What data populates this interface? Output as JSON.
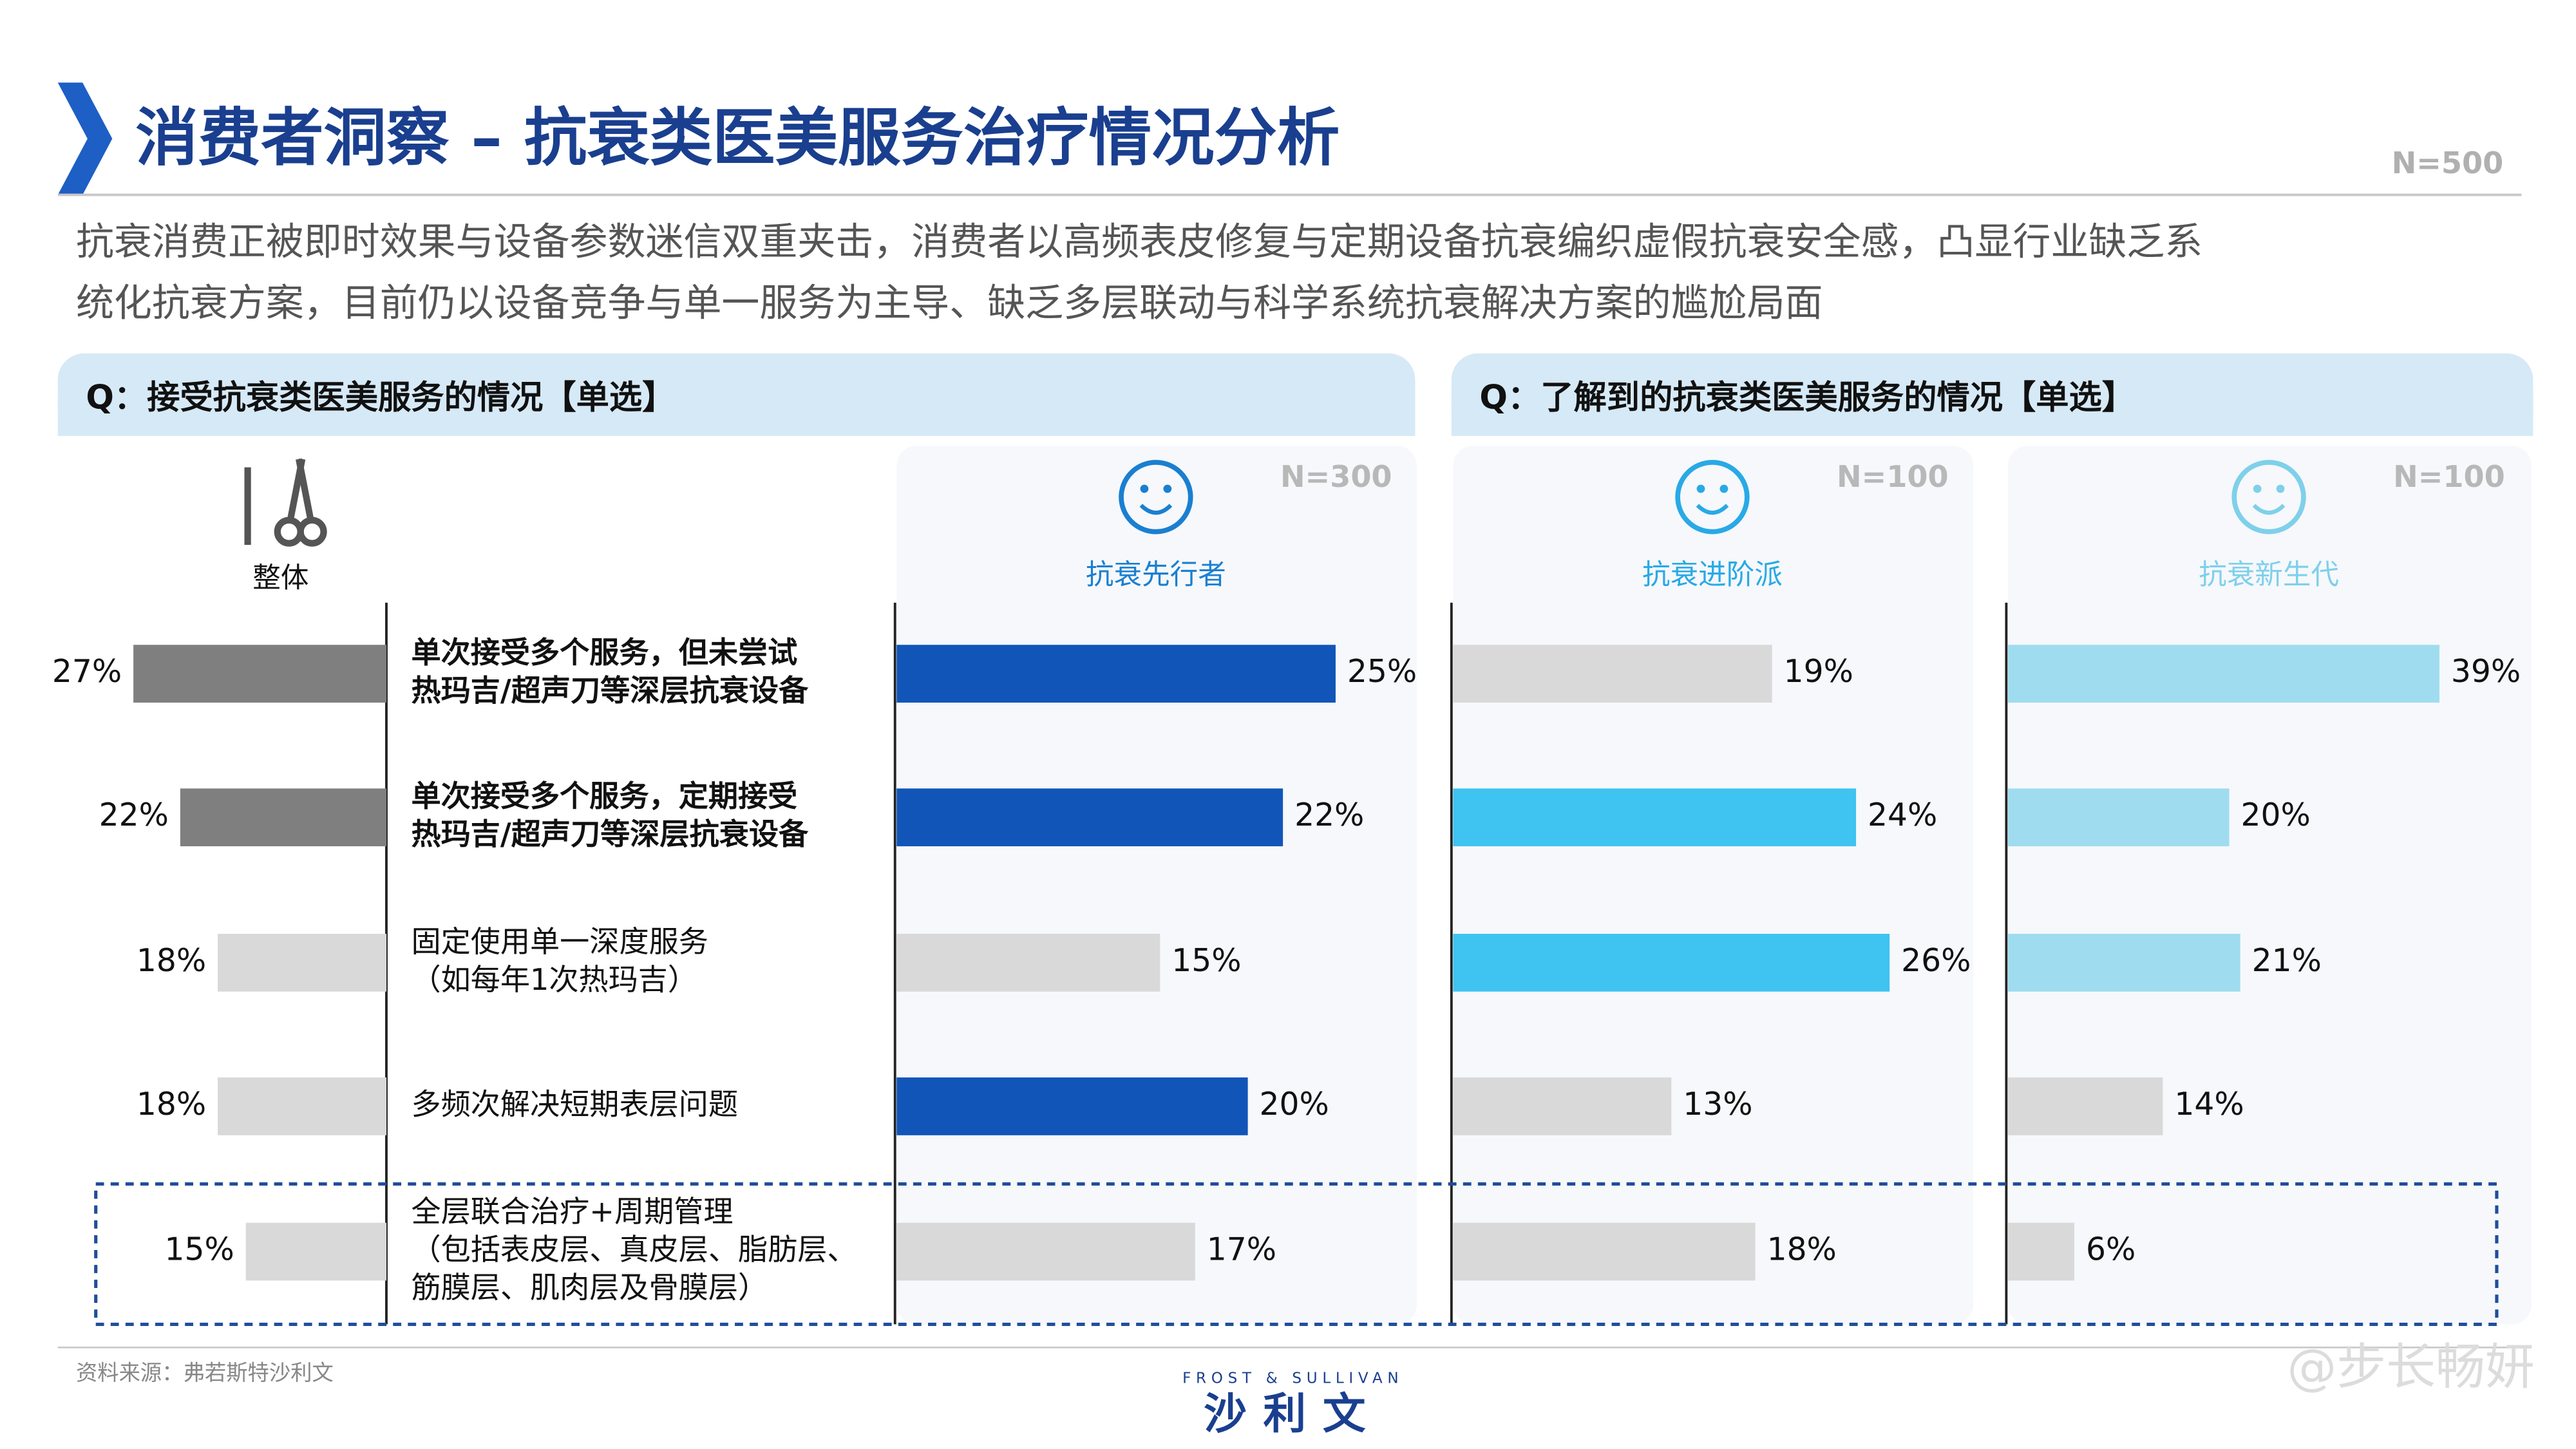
{
  "header": {
    "title": "消费者洞察 – 抗衰类医美服务治疗情况分析",
    "sample": "N=500"
  },
  "summary": [
    "抗衰消费正被即时效果与设备参数迷信双重夹击，消费者以高频表皮修复与定期设备抗衰编织虚假抗衰安全感，凸显行业缺乏系",
    "统化抗衰方案，目前仍以设备竞争与单一服务为主导、缺乏多层联动与科学系统抗衰解决方案的尴尬局面"
  ],
  "questions": [
    "Q：接受抗衰类医美服务的情况【单选】",
    "Q：了解到的抗衰类医美服务的情况【单选】"
  ],
  "categories": [
    {
      "lines": [
        "单次接受多个服务，但未尝试",
        "热玛吉/超声刀等深层抗衰设备"
      ],
      "bold": true
    },
    {
      "lines": [
        "单次接受多个服务，定期接受",
        "热玛吉/超声刀等深层抗衰设备"
      ],
      "bold": true
    },
    {
      "lines": [
        "固定使用单一深度服务",
        "（如每年1次热玛吉）"
      ],
      "bold": false
    },
    {
      "lines": [
        "多频次解决短期表层问题"
      ],
      "bold": false
    },
    {
      "lines": [
        "全层联合治疗+周期管理",
        "（包括表皮层、真皮层、脂肪层、",
        "筋膜层、肌肉层及骨膜层）"
      ],
      "bold": false
    }
  ],
  "groups": [
    {
      "name": "整体",
      "xlim": [
        0,
        40
      ],
      "values": [
        27,
        22,
        18,
        18,
        15
      ],
      "value_labels": [
        "27%",
        "22%",
        "18%",
        "18%",
        "15%"
      ],
      "colors": [
        "#7f7f7f",
        "#7f7f7f",
        "#d9d9d9",
        "#d9d9d9",
        "#d9d9d9"
      ]
    },
    {
      "name": "抗衰先行者",
      "sample": "N=300",
      "xlim": [
        0,
        30
      ],
      "values": [
        25,
        22,
        15,
        20,
        17
      ],
      "value_labels": [
        "25%",
        "22%",
        "15%",
        "20%",
        "17%"
      ],
      "colors": [
        "#1155b8",
        "#1155b8",
        "#d9d9d9",
        "#1155b8",
        "#d9d9d9"
      ],
      "icon_color": "#1a7fd0"
    },
    {
      "name": "抗衰进阶派",
      "sample": "N=100",
      "xlim": [
        0,
        30
      ],
      "values": [
        19,
        24,
        26,
        13,
        18
      ],
      "value_labels": [
        "19%",
        "24%",
        "26%",
        "13%",
        "18%"
      ],
      "colors": [
        "#d9d9d9",
        "#3fc3f0",
        "#3fc3f0",
        "#d9d9d9",
        "#d9d9d9"
      ],
      "icon_color": "#29a9e6"
    },
    {
      "name": "抗衰新生代",
      "sample": "N=100",
      "xlim": [
        0,
        40
      ],
      "values": [
        39,
        20,
        21,
        14,
        6
      ],
      "value_labels": [
        "39%",
        "20%",
        "21%",
        "14%",
        "6%"
      ],
      "colors": [
        "#9fdcef",
        "#9fdcef",
        "#9fdcef",
        "#d9d9d9",
        "#d9d9d9"
      ],
      "icon_color": "#7fd0ea"
    }
  ],
  "source": "资料来源：弗若斯特沙利文",
  "logo": {
    "en": "FROST & SULLIVAN",
    "cn": "沙利文"
  },
  "watermark": "@步长畅妍"
}
